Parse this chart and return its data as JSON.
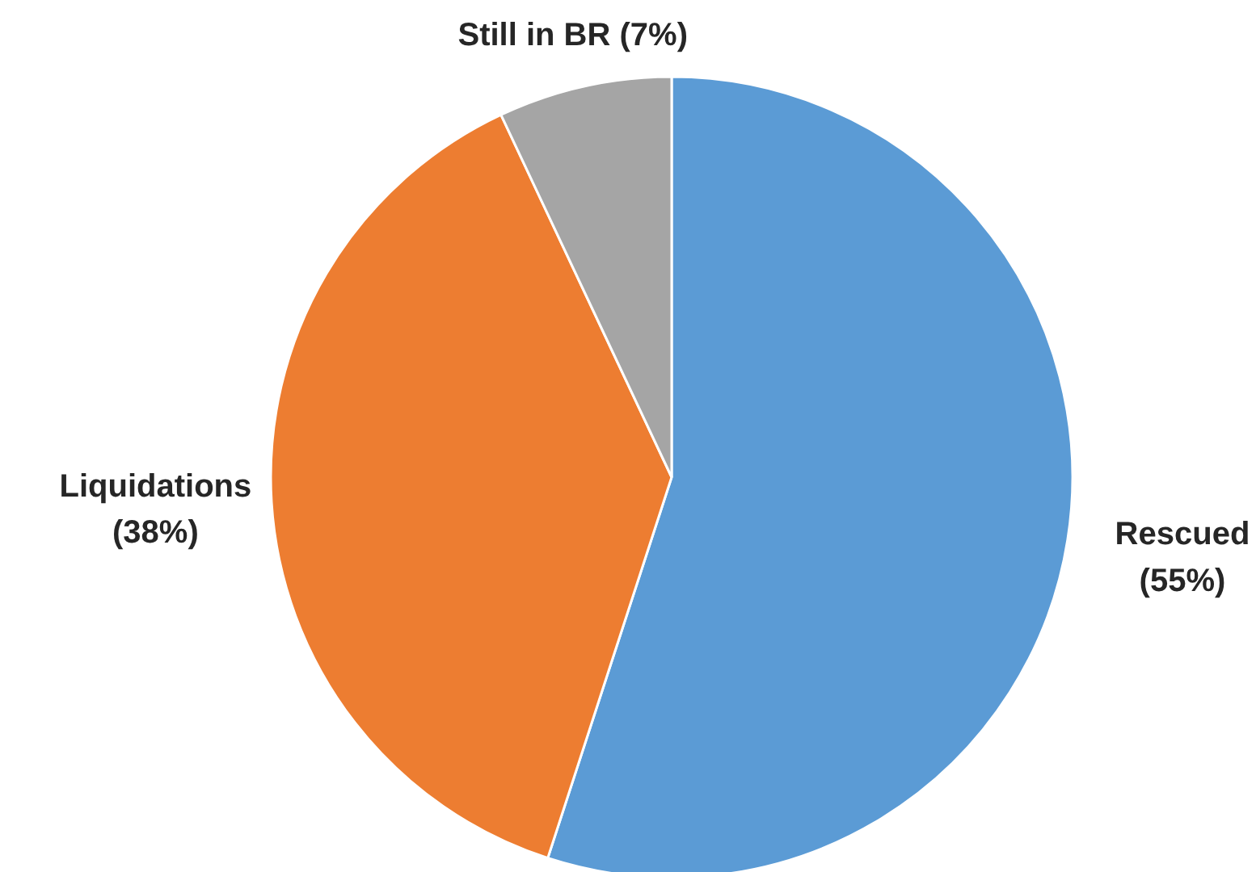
{
  "chart_data": {
    "type": "pie",
    "categories": [
      "Rescued",
      "Liquidations",
      "Still in BR"
    ],
    "values": [
      55,
      38,
      7
    ],
    "colors": [
      "#5b9bd5",
      "#ed7d31",
      "#a5a5a5"
    ],
    "value_labels": [
      "(55%)",
      "(38%)",
      "(7%)"
    ],
    "legend": false
  }
}
